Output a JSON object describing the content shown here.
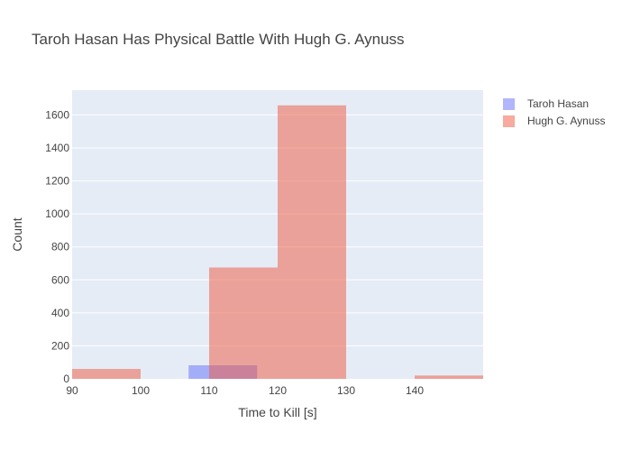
{
  "chart_data": {
    "type": "bar",
    "title": "Taroh Hasan Has Physical Battle With Hugh G. Aynuss",
    "xlabel": "Time to Kill [s]",
    "ylabel": "Count",
    "xlim": [
      90,
      150
    ],
    "ylim": [
      0,
      1750
    ],
    "x_ticks": [
      90,
      100,
      110,
      120,
      130,
      140
    ],
    "y_ticks": [
      0,
      200,
      400,
      600,
      800,
      1000,
      1200,
      1400,
      1600
    ],
    "grid": true,
    "legend_position": "top-right",
    "series": [
      {
        "name": "Taroh Hasan",
        "color": "#636efa",
        "opacity": 0.5,
        "bins": [
          {
            "x0": 107,
            "x1": 117,
            "count": 82
          }
        ]
      },
      {
        "name": "Hugh G. Aynuss",
        "color": "#ef553b",
        "opacity": 0.5,
        "bins": [
          {
            "x0": 90,
            "x1": 100,
            "count": 60
          },
          {
            "x0": 110,
            "x1": 120,
            "count": 675
          },
          {
            "x0": 120,
            "x1": 130,
            "count": 1658
          },
          {
            "x0": 140,
            "x1": 150,
            "count": 20
          }
        ]
      }
    ]
  }
}
